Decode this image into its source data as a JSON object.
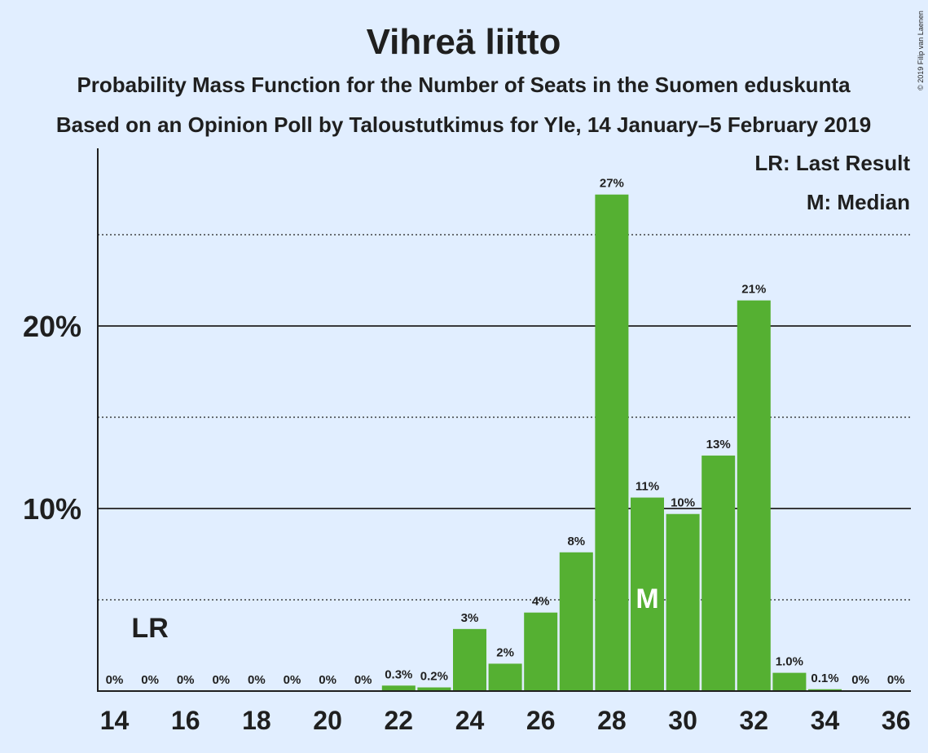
{
  "title": "Vihreä liitto",
  "subtitle1": "Probability Mass Function for the Number of Seats in the Suomen eduskunta",
  "subtitle2": "Based on an Opinion Poll by Taloustutkimus for Yle, 14 January–5 February 2019",
  "copyright": "© 2019 Filip van Laenen",
  "legend": {
    "lr": "LR: Last Result",
    "m": "M: Median"
  },
  "colors": {
    "bar": "#55b032",
    "background": "#e1eeff",
    "text": "#1f1f1f"
  },
  "chart_data": {
    "type": "bar",
    "x": [
      14,
      15,
      16,
      17,
      18,
      19,
      20,
      21,
      22,
      23,
      24,
      25,
      26,
      27,
      28,
      29,
      30,
      31,
      32,
      33,
      34,
      35,
      36
    ],
    "values": [
      0,
      0,
      0,
      0,
      0,
      0,
      0,
      0,
      0.3,
      0.2,
      3.4,
      1.5,
      4.3,
      7.6,
      27.2,
      10.6,
      9.7,
      12.9,
      21.4,
      1.0,
      0.1,
      0,
      0
    ],
    "labels": [
      "0%",
      "0%",
      "0%",
      "0%",
      "0%",
      "0%",
      "0%",
      "0%",
      "0.3%",
      "0.2%",
      "3%",
      "2%",
      "4%",
      "8%",
      "27%",
      "11%",
      "10%",
      "13%",
      "21%",
      "1.0%",
      "0.1%",
      "0%",
      "0%"
    ],
    "xticks": [
      "14",
      "16",
      "18",
      "20",
      "22",
      "24",
      "26",
      "28",
      "30",
      "32",
      "34",
      "36"
    ],
    "ytick_values": [
      10,
      20
    ],
    "yticks": [
      "10%",
      "20%"
    ],
    "dotted_gridlines": [
      5,
      15,
      25
    ],
    "ylim": [
      0,
      29.6
    ],
    "last_result": {
      "seats": 15,
      "label": "LR"
    },
    "median": {
      "seats": 29,
      "label": "M"
    },
    "grid": true,
    "legend_position": "top-right"
  }
}
